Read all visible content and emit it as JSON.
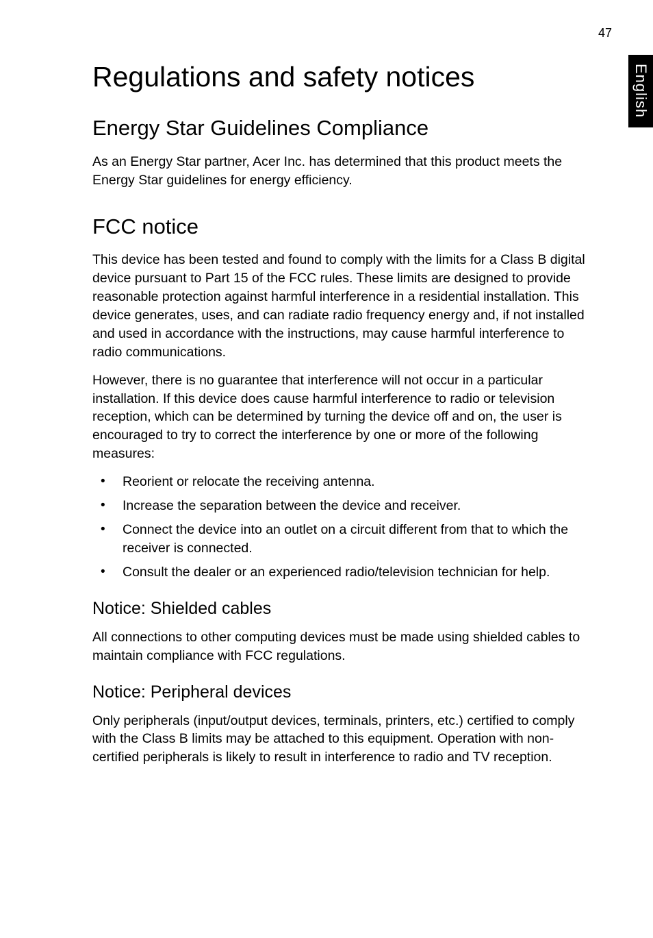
{
  "page_number": "47",
  "side_tab": "English",
  "title": "Regulations and safety notices",
  "sections": [
    {
      "heading": "Energy Star Guidelines Compliance",
      "paragraphs": [
        "As an Energy Star partner, Acer Inc. has determined that this product meets the Energy Star guidelines for energy efficiency."
      ]
    },
    {
      "heading": "FCC notice",
      "paragraphs": [
        "This device has been tested and found to comply with the limits for a Class B digital device pursuant to Part 15 of the FCC rules. These limits are designed to provide reasonable protection against harmful interference in a residential installation. This device generates, uses, and can radiate radio frequency energy and, if not installed and used in accordance with the instructions, may cause harmful interference to radio communications.",
        "However, there is no guarantee that interference will not occur in a particular installation. If this device does cause harmful interference to radio or television reception, which can be determined by turning the device off and on, the user is encouraged to try to correct the interference by one or more of the following measures:"
      ],
      "bullets": [
        "Reorient or relocate the receiving antenna.",
        "Increase the separation between the device and receiver.",
        "Connect the device into an outlet on a circuit different from that to which the receiver is connected.",
        "Consult the dealer or an experienced radio/television technician for help."
      ],
      "subsections": [
        {
          "heading": "Notice: Shielded cables",
          "paragraphs": [
            "All connections to other computing devices must be made using shielded cables to maintain compliance with FCC regulations."
          ]
        },
        {
          "heading": "Notice: Peripheral devices",
          "paragraphs": [
            "Only peripherals (input/output devices, terminals, printers, etc.) certified to comply with the Class B limits may be attached to this equipment. Operation with non-certified peripherals is likely to result in interference to radio and TV reception."
          ]
        }
      ]
    }
  ],
  "style": {
    "background_color": "#ffffff",
    "text_color": "#000000",
    "tab_bg": "#000000",
    "tab_text": "#ffffff",
    "h1_fontsize": 41,
    "h2_fontsize": 31,
    "h3_fontsize": 25,
    "body_fontsize": 19.5,
    "font_family": "Segoe UI, Tahoma, Arial, sans-serif"
  }
}
